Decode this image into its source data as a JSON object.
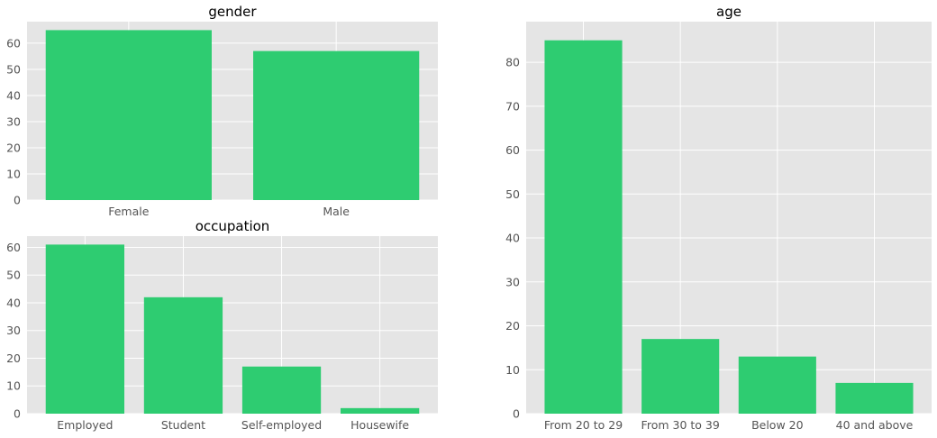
{
  "chart_data": [
    {
      "id": "gender",
      "type": "bar",
      "title": "gender",
      "xlabel": "",
      "ylabel": "",
      "categories": [
        "Female",
        "Male"
      ],
      "values": [
        65,
        57
      ],
      "ylim": [
        0,
        68.25
      ],
      "yticks": [
        0,
        10,
        20,
        30,
        40,
        50,
        60
      ],
      "grid": true,
      "color": "#2ecc71",
      "background": "#e5e5e5"
    },
    {
      "id": "occupation",
      "type": "bar",
      "title": "occupation",
      "xlabel": "",
      "ylabel": "",
      "categories": [
        "Employed",
        "Student",
        "Self-employed",
        "Housewife"
      ],
      "values": [
        61,
        42,
        17,
        2
      ],
      "ylim": [
        0,
        64.05
      ],
      "yticks": [
        0,
        10,
        20,
        30,
        40,
        50,
        60
      ],
      "grid": true,
      "color": "#2ecc71",
      "background": "#e5e5e5"
    },
    {
      "id": "age",
      "type": "bar",
      "title": "age",
      "xlabel": "",
      "ylabel": "",
      "categories": [
        "From 20 to 29",
        "From 30 to 39",
        "Below 20",
        "40 and above"
      ],
      "values": [
        85,
        17,
        13,
        7
      ],
      "ylim": [
        0,
        89.25
      ],
      "yticks": [
        0,
        10,
        20,
        30,
        40,
        50,
        60,
        70,
        80
      ],
      "grid": true,
      "color": "#2ecc71",
      "background": "#e5e5e5"
    }
  ]
}
